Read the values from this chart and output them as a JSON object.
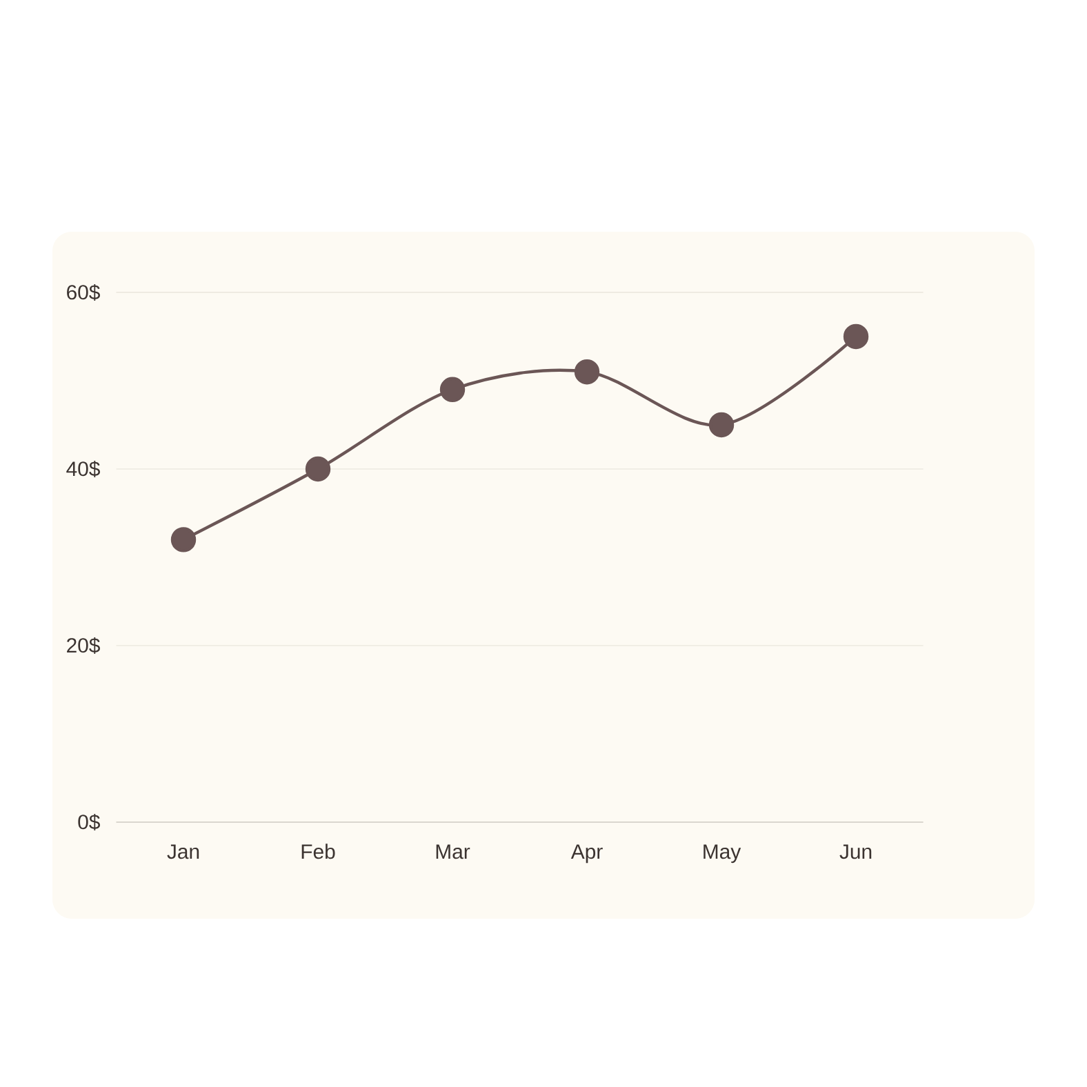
{
  "chart_data": {
    "type": "line",
    "categories": [
      "Jan",
      "Feb",
      "Mar",
      "Apr",
      "May",
      "Jun"
    ],
    "series": [
      {
        "color": "#6b5656",
        "values": [
          32,
          40,
          49,
          51,
          45,
          55
        ]
      }
    ],
    "ylim": [
      0,
      60
    ],
    "yticks": [
      {
        "value": 0,
        "label": "0$"
      },
      {
        "value": 20,
        "label": "20$"
      },
      {
        "value": 40,
        "label": "40$"
      },
      {
        "value": 60,
        "label": "60$"
      }
    ],
    "grid": "y",
    "marker": "circle",
    "line_style": "solid"
  }
}
